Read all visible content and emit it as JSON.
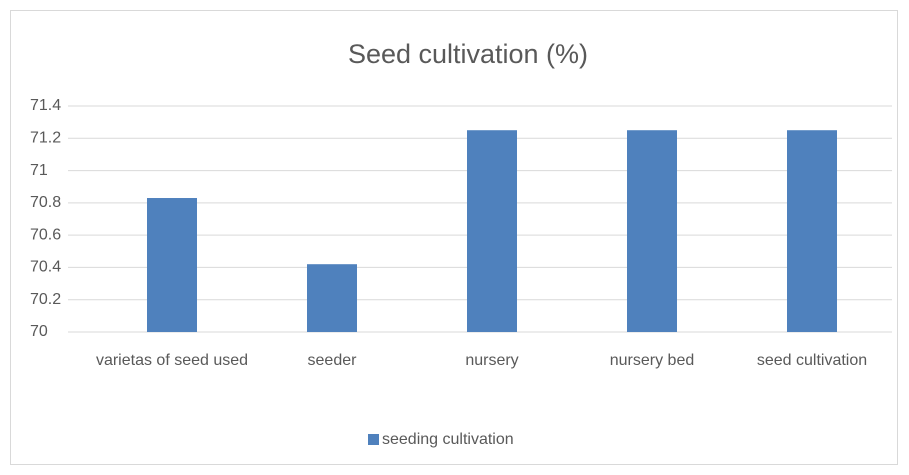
{
  "chart_data": {
    "type": "bar",
    "title": "Seed cultivation  (%)",
    "categories": [
      "varietas of seed used",
      "seeder",
      "nursery",
      "nursery bed",
      "seed cultivation"
    ],
    "series": [
      {
        "name": "seeding cultivation",
        "color": "#4f81bd",
        "values": [
          70.83,
          70.42,
          71.25,
          71.25,
          71.25
        ]
      }
    ],
    "ylim": [
      70,
      71.4
    ],
    "yticks": [
      70,
      70.2,
      70.4,
      70.6,
      70.8,
      71,
      71.2,
      71.4
    ],
    "grid": true,
    "legend": "bottom"
  }
}
